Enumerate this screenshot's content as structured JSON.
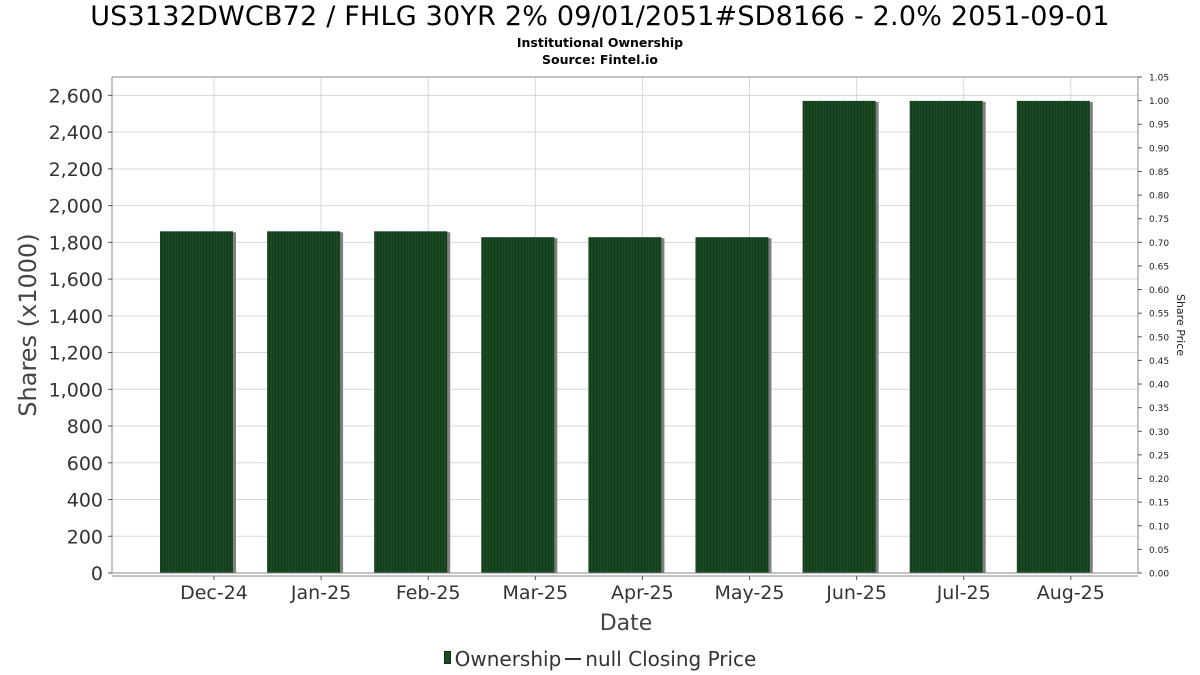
{
  "chart_data": {
    "type": "bar",
    "title": "US3132DWCB72 / FHLG 30YR 2% 09/01/2051#SD8166 - 2.0% 2051-09-01",
    "subtitle_lines": [
      "Institutional Ownership",
      "Source: Fintel.io"
    ],
    "xlabel": "Date",
    "ylabel": "Shares (x1000)",
    "y2label": "Share Price",
    "categories": [
      "Dec-24",
      "Jan-25",
      "Feb-25",
      "Mar-25",
      "Apr-25",
      "May-25",
      "Jun-25",
      "Jul-25",
      "Aug-25"
    ],
    "series": [
      {
        "name": "Ownership",
        "values": [
          1860,
          1860,
          1860,
          1828,
          1828,
          1828,
          2570,
          2570,
          2570
        ]
      }
    ],
    "ylim": [
      0,
      2700
    ],
    "yticks": [
      0,
      200,
      400,
      600,
      800,
      1000,
      1200,
      1400,
      1600,
      1800,
      2000,
      2200,
      2400,
      2600
    ],
    "ytick_labels": [
      "0",
      "200",
      "400",
      "600",
      "800",
      "1,000",
      "1,200",
      "1,400",
      "1,600",
      "1,800",
      "2,000",
      "2,200",
      "2,400",
      "2,600"
    ],
    "y2lim": [
      0,
      1.05
    ],
    "y2ticks": [
      "0.00",
      "0.05",
      "0.10",
      "0.15",
      "0.20",
      "0.25",
      "0.30",
      "0.35",
      "0.40",
      "0.45",
      "0.50",
      "0.55",
      "0.60",
      "0.65",
      "0.70",
      "0.75",
      "0.80",
      "0.85",
      "0.90",
      "0.95",
      "1.00",
      "1.05"
    ],
    "grid": true,
    "legend_position": "bottom-center",
    "legend": {
      "bar_label": "Ownership",
      "line_label": "null Closing Price"
    },
    "colors": {
      "bar": "#1a4a24",
      "bar_shadow": "#808080",
      "grid": "#d8d8d8",
      "axis": "#888888"
    }
  }
}
